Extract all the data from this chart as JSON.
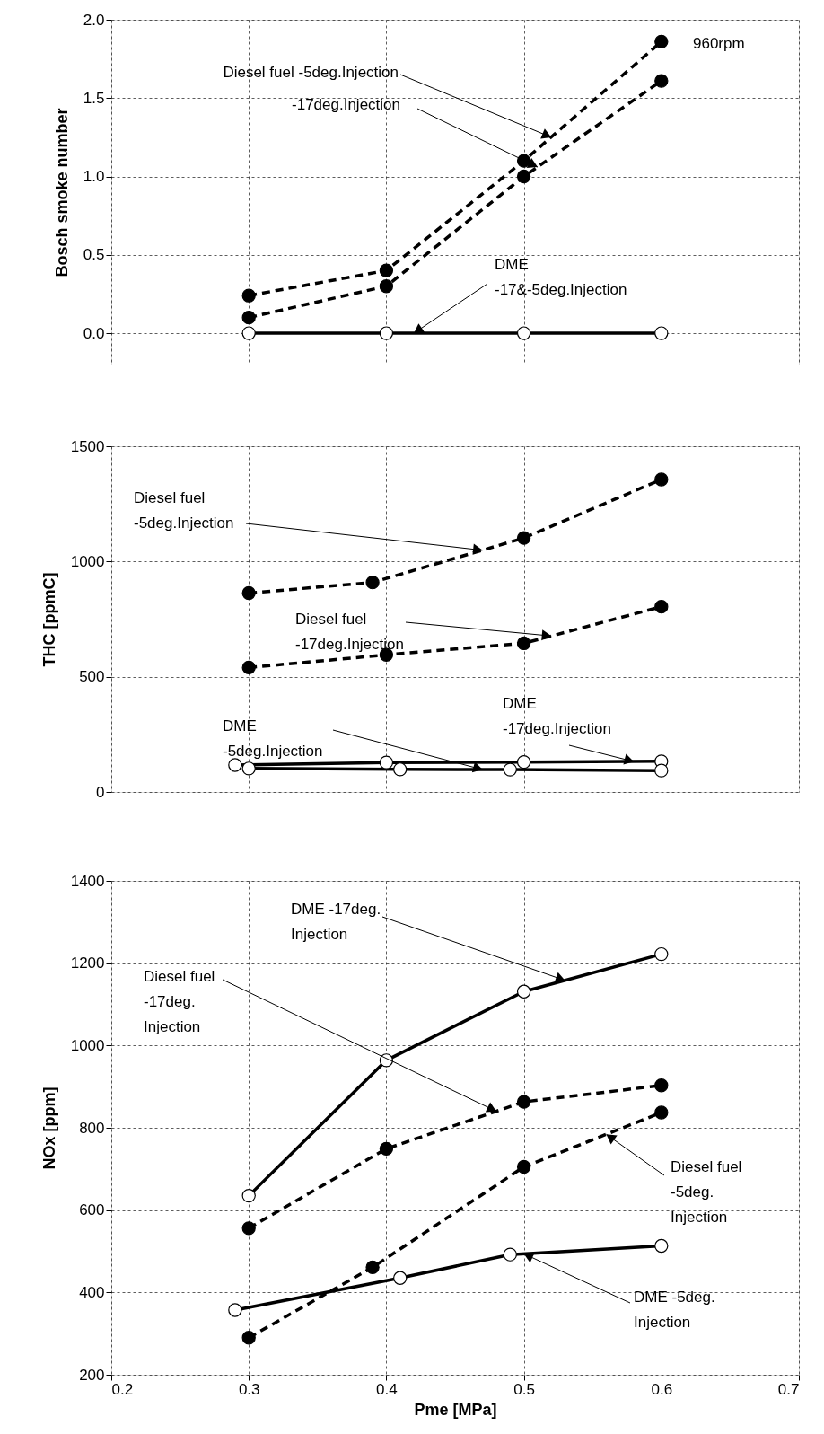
{
  "chart_data": [
    {
      "type": "line",
      "ylabel": "Bosch smoke number",
      "xlim": [
        0.2,
        0.7
      ],
      "xticks": [
        0.2,
        0.3,
        0.4,
        0.5,
        0.6,
        0.7
      ],
      "ylim": [
        -0.2,
        2.0
      ],
      "yticks": [
        {
          "value": 0,
          "label": "0.0"
        },
        {
          "value": 0.5,
          "label": "0.5"
        },
        {
          "value": 1,
          "label": "1.0"
        },
        {
          "value": 1.5,
          "label": "1.5"
        },
        {
          "value": 2,
          "label": "2.0"
        }
      ],
      "tick_labels": "y",
      "grid": true,
      "marker": "circle",
      "legend": false,
      "series": [
        {
          "color": "#000000",
          "line_style": "dashed",
          "x": [
            0.3,
            0.4,
            0.5,
            0.6
          ],
          "values": [
            0.24,
            0.4,
            1.1,
            1.86
          ]
        },
        {
          "color": "#000000",
          "line_style": "dashed",
          "x": [
            0.3,
            0.4,
            0.5,
            0.6
          ],
          "values": [
            0.1,
            0.3,
            1.0,
            1.61
          ]
        },
        {
          "color": "#000000",
          "line_style": "solid",
          "x": [
            0.3,
            0.4,
            0.5,
            0.6
          ],
          "values": [
            0,
            0,
            0,
            0
          ]
        }
      ],
      "annotations": [
        "960rpm",
        {
          "text": "Diesel fuel -5deg.Injection",
          "x": 0.52,
          "y": 1.25
        },
        {
          "text": "-17deg.Injection",
          "x": 0.51,
          "y": 1.06
        },
        {
          "text": "DME\n-17&-5deg.Injection",
          "x": 0.42,
          "y": 0
        }
      ]
    },
    {
      "type": "line",
      "ylabel": "THC [ppmC]",
      "xlim": [
        0.2,
        0.7
      ],
      "xticks": [
        0.2,
        0.3,
        0.4,
        0.5,
        0.6,
        0.7
      ],
      "ylim": [
        0,
        1500
      ],
      "yticks": [
        0,
        500,
        1000,
        1500
      ],
      "tick_labels": "y",
      "grid": true,
      "marker": "circle",
      "legend": false,
      "series": [
        {
          "color": "#000000",
          "line_style": "dashed",
          "x": [
            0.3,
            0.39,
            0.5,
            0.6
          ],
          "values": [
            863,
            909,
            1102,
            1356
          ]
        },
        {
          "color": "#000000",
          "line_style": "dashed",
          "x": [
            0.3,
            0.4,
            0.5,
            0.6
          ],
          "values": [
            540,
            595,
            645,
            804
          ]
        },
        {
          "color": "#000000",
          "line_style": "solid",
          "x": [
            0.29,
            0.4,
            0.5,
            0.6
          ],
          "values": [
            117,
            128,
            130,
            133
          ]
        },
        {
          "color": "#000000",
          "line_style": "solid",
          "x": [
            0.3,
            0.41,
            0.49,
            0.6
          ],
          "values": [
            102,
            98,
            97,
            93
          ]
        }
      ],
      "annotations": [
        {
          "text": "Diesel fuel\n-5deg.Injection",
          "x": 0.47,
          "y": 1049
        },
        {
          "text": "Diesel fuel\n-17deg.Injection",
          "x": 0.52,
          "y": 677
        },
        {
          "text": "DME\n-5deg.Injection",
          "x": 0.47,
          "y": 97
        },
        {
          "text": "DME\n-17deg.Injection",
          "x": 0.58,
          "y": 132
        }
      ]
    },
    {
      "type": "line",
      "xlabel": "Pme  [MPa]",
      "ylabel": "NOx [ppm]",
      "xlim": [
        0.2,
        0.7
      ],
      "xticks": [
        0.2,
        0.3,
        0.4,
        0.5,
        0.6,
        0.7
      ],
      "ylim": [
        200,
        1400
      ],
      "yticks": [
        200,
        400,
        600,
        800,
        1000,
        1200,
        1400
      ],
      "grid": true,
      "marker": "circle",
      "legend": false,
      "series": [
        {
          "color": "#000000",
          "line_style": "solid",
          "x": [
            0.3,
            0.4,
            0.5,
            0.6
          ],
          "values": [
            635,
            964,
            1131,
            1222
          ]
        },
        {
          "color": "#000000",
          "line_style": "dashed",
          "x": [
            0.3,
            0.4,
            0.5,
            0.6
          ],
          "values": [
            556,
            749,
            863,
            903
          ]
        },
        {
          "color": "#000000",
          "line_style": "dashed",
          "x": [
            0.3,
            0.39,
            0.5,
            0.6
          ],
          "values": [
            290,
            461,
            705,
            837
          ]
        },
        {
          "color": "#000000",
          "line_style": "solid",
          "x": [
            0.29,
            0.41,
            0.49,
            0.6
          ],
          "values": [
            357,
            435,
            492,
            513
          ]
        }
      ],
      "annotations": [
        {
          "text": "DME -17deg.\nInjection",
          "x": 0.53,
          "y": 1158
        },
        {
          "text": "Diesel fuel\n-17deg.\nInjection",
          "x": 0.48,
          "y": 840
        },
        {
          "text": "Diesel fuel\n-5deg.\nInjection",
          "x": 0.56,
          "y": 784
        },
        {
          "text": "DME -5deg.\nInjection",
          "x": 0.5,
          "y": 494
        }
      ]
    }
  ]
}
